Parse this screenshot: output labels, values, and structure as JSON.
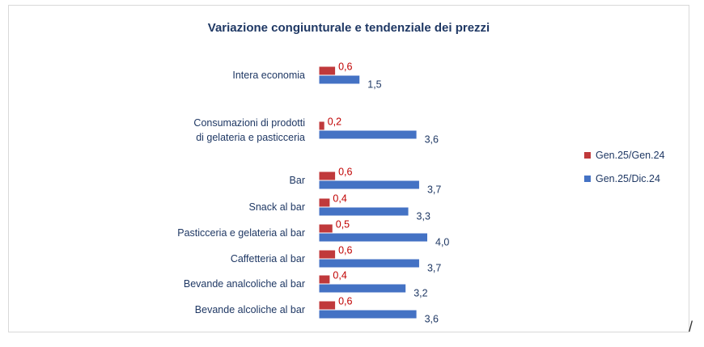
{
  "chart_data": {
    "type": "bar",
    "orientation": "horizontal",
    "title": "Variazione congiunturale e tendenziale dei prezzi",
    "categories": [
      [
        "Intera economia"
      ],
      [
        "Consumazioni di prodotti",
        "di gelateria e pasticceria"
      ],
      [
        "Bar"
      ],
      [
        "Snack al bar"
      ],
      [
        "Pasticceria e gelateria al bar"
      ],
      [
        "Caffetteria al bar"
      ],
      [
        "Bevande analcoliche al bar"
      ],
      [
        "Bevande alcoliche al bar"
      ]
    ],
    "series": [
      {
        "name": "Gen.25/Gen.24",
        "color": "#c0393b",
        "label_color": "#c00000",
        "values": [
          0.6,
          0.2,
          0.6,
          0.4,
          0.5,
          0.6,
          0.4,
          0.6
        ],
        "labels": [
          "0,6",
          "0,2",
          "0,6",
          "0,4",
          "0,5",
          "0,6",
          "0,4",
          "0,6"
        ]
      },
      {
        "name": "Gen.25/Dic.24",
        "color": "#4472c4",
        "label_color": "#1f3864",
        "values": [
          1.5,
          3.6,
          3.7,
          3.3,
          4.0,
          3.7,
          3.2,
          3.6
        ],
        "labels": [
          "1,5",
          "3,6",
          "3,7",
          "3,3",
          "4,0",
          "3,7",
          "3,2",
          "3,6"
        ]
      }
    ],
    "legend": "right",
    "grid": false
  },
  "footer_mark": "/"
}
